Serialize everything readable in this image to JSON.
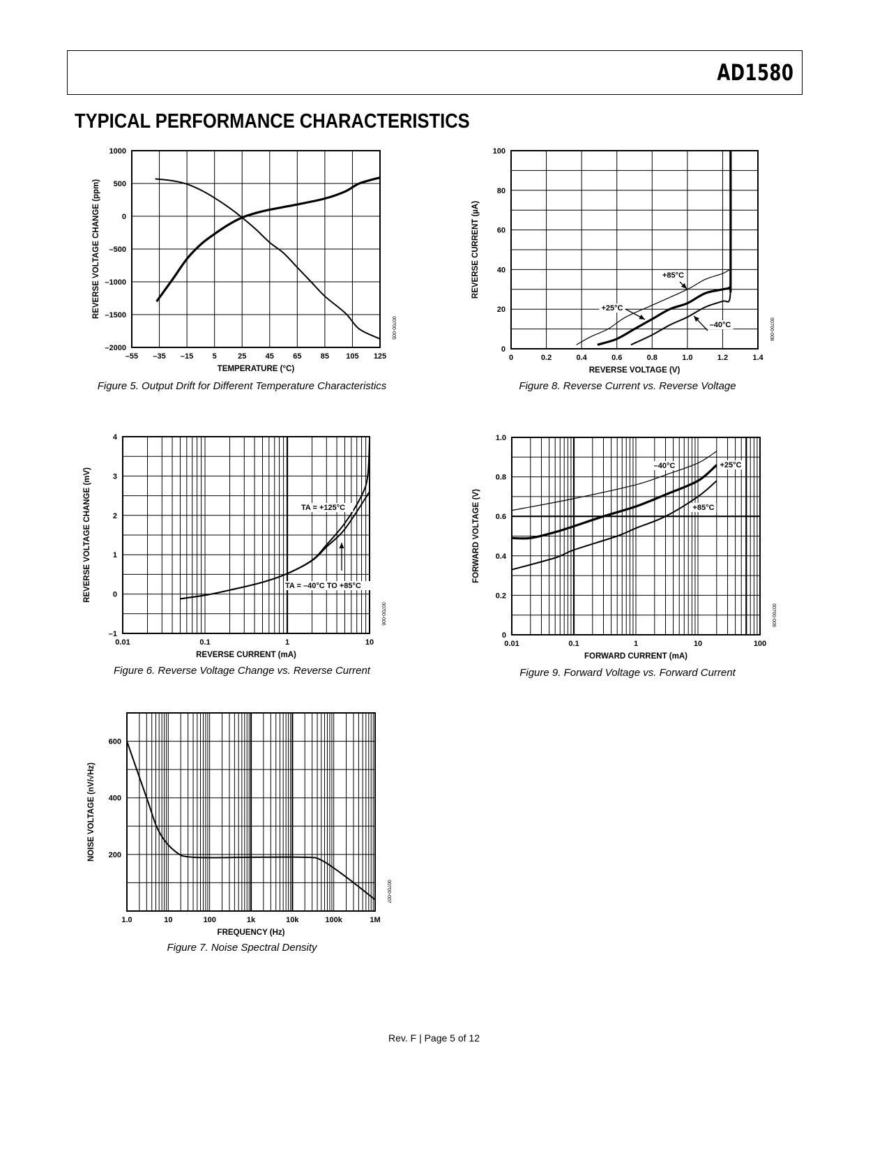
{
  "header": {
    "part_number": "AD1580"
  },
  "section_title": "TYPICAL PERFORMANCE CHARACTERISTICS",
  "footer": "Rev. F | Page 5 of 12",
  "chart_data": [
    {
      "id": "fig5",
      "type": "line",
      "caption": "Figure 5. Output Drift for Different Temperature Characteristics",
      "code": "00700-005",
      "xlabel": "TEMPERATURE (°C)",
      "ylabel": "REVERSE VOLTAGE CHANGE (ppm)",
      "xscale": "linear",
      "xlim": [
        -55,
        125
      ],
      "ylim": [
        -2000,
        1000
      ],
      "xticks": [
        -55,
        -35,
        -15,
        5,
        25,
        45,
        65,
        85,
        105,
        125
      ],
      "xtick_labels": [
        "–55",
        "–35",
        "–15",
        "5",
        "25",
        "45",
        "65",
        "85",
        "105",
        "125"
      ],
      "yticks": [
        -2000,
        -1500,
        -1000,
        -500,
        0,
        500,
        1000
      ],
      "ytick_labels": [
        "–2000",
        "–1500",
        "–1000",
        "–500",
        "0",
        "500",
        "1000"
      ],
      "grid": true,
      "series": [
        {
          "x": [
            -37,
            -25,
            -15,
            -5,
            5,
            15,
            25,
            35,
            45,
            65,
            85,
            100,
            110,
            125
          ],
          "y": [
            -1300,
            -950,
            -650,
            -430,
            -270,
            -130,
            -20,
            50,
            100,
            180,
            270,
            380,
            500,
            590
          ],
          "weight": "bold"
        },
        {
          "x": [
            -38,
            -25,
            -15,
            -5,
            5,
            15,
            25,
            35,
            45,
            55,
            65,
            75,
            85,
            100,
            110,
            125
          ],
          "y": [
            570,
            540,
            490,
            400,
            280,
            140,
            -20,
            -200,
            -400,
            -560,
            -780,
            -1000,
            -1220,
            -1480,
            -1720,
            -1870
          ],
          "weight": "normal"
        }
      ],
      "annotations": []
    },
    {
      "id": "fig8",
      "type": "line",
      "caption": "Figure 8. Reverse Current vs. Reverse Voltage",
      "code": "00700-008",
      "xlabel": "REVERSE VOLTAGE (V)",
      "ylabel": "REVERSE CURRENT (µA)",
      "xscale": "linear",
      "xlim": [
        0,
        1.4
      ],
      "ylim": [
        0,
        100
      ],
      "xticks": [
        0,
        0.2,
        0.4,
        0.6,
        0.8,
        1.0,
        1.2,
        1.4
      ],
      "xtick_labels": [
        "0",
        "0.2",
        "0.4",
        "0.6",
        "0.8",
        "1.0",
        "1.2",
        "1.4"
      ],
      "yticks": [
        0,
        20,
        40,
        60,
        80,
        100
      ],
      "ytick_labels": [
        "0",
        "20",
        "40",
        "60",
        "80",
        "100"
      ],
      "grid": true,
      "series": [
        {
          "name": "+85°C",
          "x": [
            0.37,
            0.45,
            0.55,
            0.65,
            0.8,
            1.0,
            1.1,
            1.2,
            1.24
          ],
          "y": [
            2,
            6,
            10,
            16,
            22,
            30,
            35,
            38,
            40
          ],
          "weight": "thin"
        },
        {
          "name": "+25°C",
          "x": [
            0.49,
            0.6,
            0.7,
            0.8,
            0.9,
            1.0,
            1.1,
            1.2,
            1.24,
            1.245,
            1.245
          ],
          "y": [
            2,
            5,
            10,
            15,
            20,
            23,
            28,
            30,
            31,
            35,
            100
          ],
          "weight": "bold"
        },
        {
          "name": "–40°C",
          "x": [
            0.68,
            0.8,
            0.9,
            1.0,
            1.1,
            1.2,
            1.24,
            1.245
          ],
          "y": [
            2,
            7,
            12,
            16,
            21,
            24,
            25,
            40
          ],
          "weight": "normal"
        }
      ],
      "annotations": [
        "+85°C",
        "+25°C",
        "–40°C"
      ]
    },
    {
      "id": "fig6",
      "type": "line",
      "caption": "Figure 6. Reverse Voltage Change vs. Reverse Current",
      "code": "00700-006",
      "xlabel": "REVERSE CURRENT (mA)",
      "ylabel": "REVERSE VOLTAGE CHANGE (mV)",
      "xscale": "log",
      "xlim": [
        0.01,
        10
      ],
      "ylim": [
        -1,
        4
      ],
      "xticks": [
        0.01,
        0.1,
        1,
        10
      ],
      "xtick_labels": [
        "0.01",
        "0.1",
        "1",
        "10"
      ],
      "yticks": [
        -1,
        0,
        1,
        2,
        3,
        4
      ],
      "ytick_labels": [
        "–1",
        "0",
        "1",
        "2",
        "3",
        "4"
      ],
      "grid": true,
      "series": [
        {
          "name": "TA = –40°C TO +85°C",
          "x": [
            0.05,
            0.1,
            0.2,
            0.5,
            1,
            2,
            3,
            5,
            10
          ],
          "y": [
            -0.12,
            -0.03,
            0.1,
            0.3,
            0.52,
            0.85,
            1.2,
            1.65,
            2.6
          ],
          "weight": "normal"
        },
        {
          "name": "TA = +125°C",
          "x": [
            0.05,
            0.1,
            0.2,
            0.5,
            1,
            2,
            3,
            5,
            8,
            9.5,
            10
          ],
          "y": [
            -0.12,
            -0.03,
            0.1,
            0.3,
            0.52,
            0.86,
            1.25,
            1.8,
            2.5,
            3.0,
            3.9
          ],
          "weight": "normal"
        }
      ],
      "annotations": [
        "TA = +125°C",
        "TA = –40°C TO +85°C"
      ]
    },
    {
      "id": "fig9",
      "type": "line",
      "caption": "Figure 9. Forward Voltage vs. Forward Current",
      "code": "00700-009",
      "xlabel": "FORWARD CURRENT (mA)",
      "ylabel": "FORWARD VOLTAGE (V)",
      "xscale": "log",
      "xlim": [
        0.01,
        100
      ],
      "ylim": [
        0,
        1.0
      ],
      "xticks": [
        0.01,
        0.1,
        1,
        10,
        100
      ],
      "xtick_labels": [
        "0.01",
        "0.1",
        "1",
        "10",
        "100"
      ],
      "yticks": [
        0,
        0.2,
        0.4,
        0.6,
        0.8,
        1.0
      ],
      "ytick_labels": [
        "0",
        "0.2",
        "0.4",
        "0.6",
        "0.8",
        "1.0"
      ],
      "grid": true,
      "series": [
        {
          "name": "–40°C",
          "x": [
            0.01,
            0.1,
            1,
            3,
            10,
            20
          ],
          "y": [
            0.63,
            0.69,
            0.76,
            0.81,
            0.87,
            0.93
          ],
          "weight": "thin"
        },
        {
          "name": "+25°C",
          "x": [
            0.01,
            0.02,
            0.05,
            0.1,
            0.3,
            1,
            3,
            10,
            20
          ],
          "y": [
            0.49,
            0.49,
            0.52,
            0.55,
            0.6,
            0.65,
            0.71,
            0.78,
            0.86
          ],
          "weight": "bold"
        },
        {
          "name": "+85°C",
          "x": [
            0.01,
            0.05,
            0.1,
            0.5,
            1,
            3,
            10,
            20
          ],
          "y": [
            0.33,
            0.39,
            0.43,
            0.5,
            0.54,
            0.6,
            0.7,
            0.78
          ],
          "weight": "normal"
        }
      ],
      "annotations": [
        "–40°C",
        "+25°C",
        "+85°C"
      ]
    },
    {
      "id": "fig7",
      "type": "line",
      "caption": "Figure 7. Noise Spectral Density",
      "code": "00700-007",
      "xlabel": "FREQUENCY (Hz)",
      "ylabel": "NOISE VOLTAGE (nV/√Hz)",
      "xscale": "log",
      "xlim": [
        1,
        1000000
      ],
      "ylim": [
        0,
        700
      ],
      "xticks": [
        1,
        10,
        100,
        1000,
        10000,
        100000,
        1000000
      ],
      "xtick_labels": [
        "1.0",
        "10",
        "100",
        "1k",
        "10k",
        "100k",
        "1M"
      ],
      "yticks": [
        200,
        400,
        600
      ],
      "ytick_labels": [
        "200",
        "400",
        "600"
      ],
      "grid": true,
      "series": [
        {
          "x": [
            1,
            3,
            6,
            15,
            40,
            1000,
            20000,
            50000,
            200000,
            1000000
          ],
          "y": [
            600,
            400,
            280,
            210,
            190,
            190,
            190,
            180,
            120,
            40
          ],
          "weight": "normal"
        }
      ],
      "annotations": []
    }
  ]
}
